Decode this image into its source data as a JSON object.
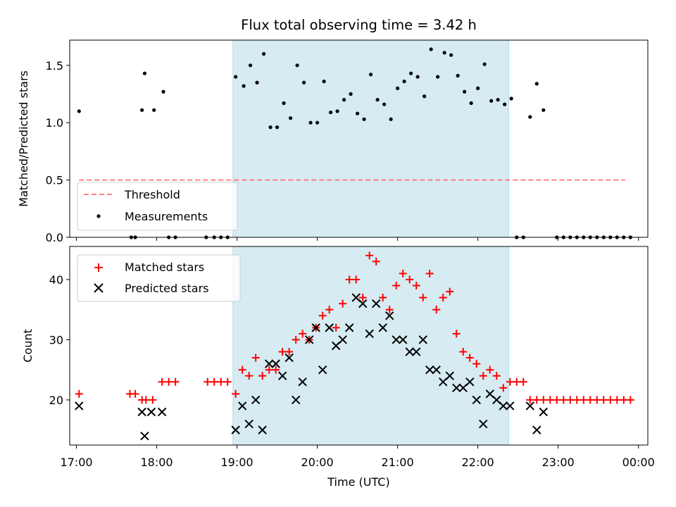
{
  "chart_data": [
    {
      "type": "scatter",
      "panel": "top",
      "title": "Flux total observing time = 3.42 h",
      "ylabel": "Matched/Predicted stars",
      "xlabel": "",
      "xlim": [
        "16:55",
        "24:07"
      ],
      "ylim": [
        0,
        1.72
      ],
      "yticks": [
        0.0,
        0.5,
        1.0,
        1.5
      ],
      "ytick_labels": [
        "0.0",
        "0.5",
        "1.0",
        "1.5"
      ],
      "grid": false,
      "shaded_span": {
        "start": "18:57",
        "end": "22:23",
        "color": "#add8e6"
      },
      "legend": {
        "placement": "lower-left",
        "entries": [
          {
            "label": "Threshold",
            "style": "dashed-line",
            "color": "#ff7f7f"
          },
          {
            "label": "Measurements",
            "style": "dot",
            "color": "#000000"
          }
        ]
      },
      "series": [
        {
          "name": "Threshold",
          "style": "dashed-line",
          "color": "#ff7f7f",
          "x": [
            "17:02",
            "23:50"
          ],
          "y": [
            0.5,
            0.5
          ]
        },
        {
          "name": "Measurements",
          "style": "dot",
          "color": "#000000",
          "points": [
            [
              "17:02",
              1.1
            ],
            [
              "17:41",
              0.0
            ],
            [
              "17:44",
              0.0
            ],
            [
              "17:49",
              1.11
            ],
            [
              "17:51",
              1.43
            ],
            [
              "17:58",
              1.11
            ],
            [
              "18:05",
              1.27
            ],
            [
              "18:09",
              0.0
            ],
            [
              "18:14",
              0.0
            ],
            [
              "18:37",
              0.0
            ],
            [
              "18:43",
              0.0
            ],
            [
              "18:48",
              0.0
            ],
            [
              "18:53",
              0.0
            ],
            [
              "18:59",
              1.4
            ],
            [
              "19:05",
              1.32
            ],
            [
              "19:10",
              1.5
            ],
            [
              "19:15",
              1.35
            ],
            [
              "19:20",
              1.6
            ],
            [
              "19:25",
              0.96
            ],
            [
              "19:30",
              0.96
            ],
            [
              "19:35",
              1.17
            ],
            [
              "19:40",
              1.04
            ],
            [
              "19:45",
              1.5
            ],
            [
              "19:50",
              1.35
            ],
            [
              "19:55",
              1.0
            ],
            [
              "20:00",
              1.0
            ],
            [
              "20:05",
              1.36
            ],
            [
              "20:10",
              1.09
            ],
            [
              "20:15",
              1.1
            ],
            [
              "20:20",
              1.2
            ],
            [
              "20:25",
              1.25
            ],
            [
              "20:30",
              1.08
            ],
            [
              "20:35",
              1.03
            ],
            [
              "20:40",
              1.42
            ],
            [
              "20:45",
              1.2
            ],
            [
              "20:50",
              1.16
            ],
            [
              "20:55",
              1.03
            ],
            [
              "21:00",
              1.3
            ],
            [
              "21:05",
              1.36
            ],
            [
              "21:10",
              1.43
            ],
            [
              "21:15",
              1.4
            ],
            [
              "21:20",
              1.23
            ],
            [
              "21:25",
              1.64
            ],
            [
              "21:30",
              1.4
            ],
            [
              "21:35",
              1.61
            ],
            [
              "21:40",
              1.59
            ],
            [
              "21:45",
              1.41
            ],
            [
              "21:50",
              1.27
            ],
            [
              "21:55",
              1.17
            ],
            [
              "22:00",
              1.3
            ],
            [
              "22:05",
              1.51
            ],
            [
              "22:10",
              1.19
            ],
            [
              "22:15",
              1.2
            ],
            [
              "22:20",
              1.16
            ],
            [
              "22:25",
              1.21
            ],
            [
              "22:29",
              0.0
            ],
            [
              "22:34",
              0.0
            ],
            [
              "22:39",
              1.05
            ],
            [
              "22:44",
              1.34
            ],
            [
              "22:49",
              1.11
            ],
            [
              "22:59",
              0.0
            ],
            [
              "23:04",
              0.0
            ],
            [
              "23:09",
              0.0
            ],
            [
              "23:14",
              0.0
            ],
            [
              "23:19",
              0.0
            ],
            [
              "23:24",
              0.0
            ],
            [
              "23:29",
              0.0
            ],
            [
              "23:34",
              0.0
            ],
            [
              "23:39",
              0.0
            ],
            [
              "23:44",
              0.0
            ],
            [
              "23:49",
              0.0
            ],
            [
              "23:54",
              0.0
            ]
          ]
        }
      ]
    },
    {
      "type": "scatter",
      "panel": "bottom",
      "title": "",
      "ylabel": "Count",
      "xlabel": "Time (UTC)",
      "xlim": [
        "16:55",
        "24:07"
      ],
      "ylim": [
        12.5,
        45.5
      ],
      "yticks": [
        20,
        30,
        40
      ],
      "ytick_labels": [
        "20",
        "30",
        "40"
      ],
      "xticks": [
        "17:00",
        "18:00",
        "19:00",
        "20:00",
        "21:00",
        "22:00",
        "23:00",
        "24:00"
      ],
      "xtick_labels": [
        "17:00",
        "18:00",
        "19:00",
        "20:00",
        "21:00",
        "22:00",
        "23:00",
        "00:00"
      ],
      "grid": false,
      "shaded_span": {
        "start": "18:57",
        "end": "22:23",
        "color": "#add8e6"
      },
      "legend": {
        "placement": "upper-left",
        "entries": [
          {
            "label": "Matched stars",
            "style": "plus",
            "color": "#ff0000"
          },
          {
            "label": "Predicted stars",
            "style": "x",
            "color": "#000000"
          }
        ]
      },
      "series": [
        {
          "name": "Matched stars",
          "style": "plus",
          "color": "#ff0000",
          "points": [
            [
              "17:02",
              21
            ],
            [
              "17:40",
              21
            ],
            [
              "17:44",
              21
            ],
            [
              "17:49",
              20
            ],
            [
              "17:52",
              20
            ],
            [
              "17:57",
              20
            ],
            [
              "18:04",
              23
            ],
            [
              "18:09",
              23
            ],
            [
              "18:14",
              23
            ],
            [
              "18:38",
              23
            ],
            [
              "18:43",
              23
            ],
            [
              "18:48",
              23
            ],
            [
              "18:53",
              23
            ],
            [
              "18:59",
              21
            ],
            [
              "19:04",
              25
            ],
            [
              "19:09",
              24
            ],
            [
              "19:14",
              27
            ],
            [
              "19:19",
              24
            ],
            [
              "19:24",
              25
            ],
            [
              "19:29",
              25
            ],
            [
              "19:34",
              28
            ],
            [
              "19:39",
              28
            ],
            [
              "19:44",
              30
            ],
            [
              "19:49",
              31
            ],
            [
              "19:54",
              30
            ],
            [
              "19:59",
              32
            ],
            [
              "20:04",
              34
            ],
            [
              "20:09",
              35
            ],
            [
              "20:14",
              32
            ],
            [
              "20:19",
              36
            ],
            [
              "20:24",
              40
            ],
            [
              "20:29",
              40
            ],
            [
              "20:34",
              37
            ],
            [
              "20:39",
              44
            ],
            [
              "20:44",
              43
            ],
            [
              "20:49",
              37
            ],
            [
              "20:54",
              35
            ],
            [
              "20:59",
              39
            ],
            [
              "21:04",
              41
            ],
            [
              "21:09",
              40
            ],
            [
              "21:14",
              39
            ],
            [
              "21:19",
              37
            ],
            [
              "21:24",
              41
            ],
            [
              "21:29",
              35
            ],
            [
              "21:34",
              37
            ],
            [
              "21:39",
              38
            ],
            [
              "21:44",
              31
            ],
            [
              "21:49",
              28
            ],
            [
              "21:54",
              27
            ],
            [
              "21:59",
              26
            ],
            [
              "22:04",
              24
            ],
            [
              "22:09",
              25
            ],
            [
              "22:14",
              24
            ],
            [
              "22:19",
              22
            ],
            [
              "22:24",
              23
            ],
            [
              "22:29",
              23
            ],
            [
              "22:34",
              23
            ],
            [
              "22:39",
              20
            ],
            [
              "22:44",
              20
            ],
            [
              "22:49",
              20
            ],
            [
              "22:54",
              20
            ],
            [
              "22:59",
              20
            ],
            [
              "23:04",
              20
            ],
            [
              "23:09",
              20
            ],
            [
              "23:14",
              20
            ],
            [
              "23:19",
              20
            ],
            [
              "23:24",
              20
            ],
            [
              "23:29",
              20
            ],
            [
              "23:34",
              20
            ],
            [
              "23:39",
              20
            ],
            [
              "23:44",
              20
            ],
            [
              "23:49",
              20
            ],
            [
              "23:54",
              20
            ]
          ]
        },
        {
          "name": "Predicted stars",
          "style": "x",
          "color": "#000000",
          "points": [
            [
              "17:02",
              19
            ],
            [
              "17:49",
              18
            ],
            [
              "17:51",
              14
            ],
            [
              "17:56",
              18
            ],
            [
              "18:04",
              18
            ],
            [
              "18:59",
              15
            ],
            [
              "19:04",
              19
            ],
            [
              "19:09",
              16
            ],
            [
              "19:14",
              20
            ],
            [
              "19:19",
              15
            ],
            [
              "19:24",
              26
            ],
            [
              "19:29",
              26
            ],
            [
              "19:34",
              24
            ],
            [
              "19:39",
              27
            ],
            [
              "19:44",
              20
            ],
            [
              "19:49",
              23
            ],
            [
              "19:54",
              30
            ],
            [
              "19:59",
              32
            ],
            [
              "20:04",
              25
            ],
            [
              "20:09",
              32
            ],
            [
              "20:14",
              29
            ],
            [
              "20:19",
              30
            ],
            [
              "20:24",
              32
            ],
            [
              "20:29",
              37
            ],
            [
              "20:34",
              36
            ],
            [
              "20:39",
              31
            ],
            [
              "20:44",
              36
            ],
            [
              "20:49",
              32
            ],
            [
              "20:54",
              34
            ],
            [
              "20:59",
              30
            ],
            [
              "21:04",
              30
            ],
            [
              "21:09",
              28
            ],
            [
              "21:14",
              28
            ],
            [
              "21:19",
              30
            ],
            [
              "21:24",
              25
            ],
            [
              "21:29",
              25
            ],
            [
              "21:34",
              23
            ],
            [
              "21:39",
              24
            ],
            [
              "21:44",
              22
            ],
            [
              "21:49",
              22
            ],
            [
              "21:54",
              23
            ],
            [
              "21:59",
              20
            ],
            [
              "22:04",
              16
            ],
            [
              "22:09",
              21
            ],
            [
              "22:14",
              20
            ],
            [
              "22:19",
              19
            ],
            [
              "22:24",
              19
            ],
            [
              "22:39",
              19
            ],
            [
              "22:44",
              15
            ],
            [
              "22:49",
              18
            ]
          ]
        }
      ]
    }
  ]
}
